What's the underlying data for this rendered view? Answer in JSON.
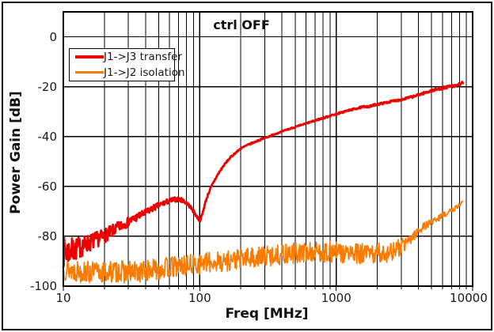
{
  "window": {
    "background": "#ffffff",
    "border_color": "#000000"
  },
  "chart_data": {
    "type": "line",
    "title": "ctrl OFF",
    "xlabel": "Freq [MHz]",
    "ylabel": "Power Gain [dB]",
    "x_scale": "log",
    "x_range": [
      10,
      10000
    ],
    "y_range": [
      -100,
      10
    ],
    "y_tick_step": 20,
    "x_ticks": [
      10,
      100,
      1000,
      10000
    ],
    "y_ticks": [
      0,
      -20,
      -40,
      -60,
      -80,
      -100
    ],
    "grid": true,
    "grid_color": "#000000",
    "legend_position": "top-left",
    "series": [
      {
        "name": "J1->J3 transfer",
        "color": "#ee0000",
        "line_width": 2.8,
        "seed": 7,
        "f_end": 8500,
        "keypoints": [
          [
            10,
            -86.5
          ],
          [
            12,
            -85.5
          ],
          [
            15,
            -83
          ],
          [
            18,
            -81
          ],
          [
            20,
            -79.8
          ],
          [
            23,
            -77.8
          ],
          [
            26,
            -76
          ],
          [
            30,
            -74.2
          ],
          [
            35,
            -72.2
          ],
          [
            40,
            -70.5
          ],
          [
            45,
            -68.9
          ],
          [
            50,
            -67.6
          ],
          [
            55,
            -66.6
          ],
          [
            60,
            -65.8
          ],
          [
            65,
            -65.3
          ],
          [
            70,
            -65.2
          ],
          [
            75,
            -65.6
          ],
          [
            80,
            -66.6
          ],
          [
            85,
            -68.1
          ],
          [
            90,
            -70
          ],
          [
            95,
            -72
          ],
          [
            100,
            -73.8
          ],
          [
            104,
            -71.5
          ],
          [
            108,
            -68
          ],
          [
            112,
            -65
          ],
          [
            116,
            -62.7
          ],
          [
            120,
            -60.8
          ],
          [
            130,
            -57
          ],
          [
            140,
            -54
          ],
          [
            150,
            -51.6
          ],
          [
            160,
            -49.7
          ],
          [
            170,
            -48.1
          ],
          [
            180,
            -46.9
          ],
          [
            190,
            -45.8
          ],
          [
            200,
            -44.8
          ],
          [
            220,
            -43.6
          ],
          [
            250,
            -42.3
          ],
          [
            280,
            -41.2
          ],
          [
            320,
            -40
          ],
          [
            360,
            -38.9
          ],
          [
            400,
            -38
          ],
          [
            450,
            -37
          ],
          [
            500,
            -36.2
          ],
          [
            600,
            -34.8
          ],
          [
            700,
            -33.6
          ],
          [
            800,
            -32.6
          ],
          [
            900,
            -31.7
          ],
          [
            1000,
            -31
          ],
          [
            1100,
            -30.3
          ],
          [
            1200,
            -29.7
          ],
          [
            1350,
            -29
          ],
          [
            1500,
            -28.4
          ],
          [
            1650,
            -27.9
          ],
          [
            1750,
            -28.1
          ],
          [
            1900,
            -27.3
          ],
          [
            2100,
            -26.9
          ],
          [
            2300,
            -26.4
          ],
          [
            2500,
            -26
          ],
          [
            2700,
            -25.6
          ],
          [
            3000,
            -25.2
          ],
          [
            3300,
            -24.6
          ],
          [
            3600,
            -24.1
          ],
          [
            4000,
            -23.3
          ],
          [
            4500,
            -22.4
          ],
          [
            5000,
            -21.6
          ],
          [
            5500,
            -21.1
          ],
          [
            6000,
            -20.6
          ],
          [
            6500,
            -20.2
          ],
          [
            7000,
            -19.8
          ],
          [
            7400,
            -19.9
          ],
          [
            7700,
            -19.3
          ],
          [
            8000,
            -19.1
          ],
          [
            8200,
            -18.7
          ],
          [
            8350,
            -18.5
          ],
          [
            8500,
            -18.9
          ]
        ],
        "noise_db": [
          [
            10,
            6
          ],
          [
            12,
            4.8
          ],
          [
            15,
            3.6
          ],
          [
            20,
            2.8
          ],
          [
            25,
            2.2
          ],
          [
            30,
            1.8
          ],
          [
            40,
            1.4
          ],
          [
            50,
            1.2
          ],
          [
            60,
            1.0
          ],
          [
            80,
            0.8
          ],
          [
            100,
            0.6
          ],
          [
            120,
            0.5
          ],
          [
            150,
            0.4
          ],
          [
            200,
            0.3
          ],
          [
            400,
            0.25
          ],
          [
            800,
            0.3
          ],
          [
            1500,
            0.4
          ],
          [
            3000,
            0.45
          ],
          [
            5000,
            0.5
          ],
          [
            8500,
            0.55
          ]
        ]
      },
      {
        "name": "J1->J2 isolation",
        "color": "#fb7a00",
        "line_width": 1.7,
        "seed": 13,
        "f_end": 8450,
        "keypoints": [
          [
            10,
            -93
          ],
          [
            15,
            -94.5
          ],
          [
            20,
            -94.5
          ],
          [
            25,
            -94
          ],
          [
            30,
            -94.5
          ],
          [
            40,
            -94
          ],
          [
            50,
            -93
          ],
          [
            60,
            -92.5
          ],
          [
            70,
            -92
          ],
          [
            85,
            -91.5
          ],
          [
            100,
            -91
          ],
          [
            120,
            -90.5
          ],
          [
            150,
            -90
          ],
          [
            200,
            -89
          ],
          [
            250,
            -88.5
          ],
          [
            300,
            -88
          ],
          [
            400,
            -87.2
          ],
          [
            500,
            -86.8
          ],
          [
            600,
            -86.5
          ],
          [
            700,
            -86.3
          ],
          [
            800,
            -86.2
          ],
          [
            1000,
            -86.4
          ],
          [
            1200,
            -86.8
          ],
          [
            1500,
            -87.2
          ],
          [
            1800,
            -87.3
          ],
          [
            2100,
            -87
          ],
          [
            2400,
            -86.3
          ],
          [
            2700,
            -85.6
          ],
          [
            3000,
            -84.3
          ],
          [
            3200,
            -83
          ],
          [
            3400,
            -81.8
          ],
          [
            3600,
            -80.5
          ],
          [
            3800,
            -79
          ],
          [
            4000,
            -77.8
          ],
          [
            4300,
            -76.5
          ],
          [
            4600,
            -75.4
          ],
          [
            5000,
            -74.2
          ],
          [
            5400,
            -73.2
          ],
          [
            5800,
            -72.2
          ],
          [
            6200,
            -71.3
          ],
          [
            6600,
            -70.5
          ],
          [
            7000,
            -69.7
          ],
          [
            7400,
            -68.9
          ],
          [
            7800,
            -67.9
          ],
          [
            8100,
            -67
          ],
          [
            8300,
            -66.4
          ],
          [
            8450,
            -65.8
          ]
        ],
        "noise_db": [
          [
            10,
            4.5
          ],
          [
            30,
            4.5
          ],
          [
            100,
            4.2
          ],
          [
            300,
            4.2
          ],
          [
            1000,
            4.3
          ],
          [
            2000,
            4.4
          ],
          [
            2800,
            3.8
          ],
          [
            3200,
            2.8
          ],
          [
            3600,
            2.2
          ],
          [
            4000,
            1.8
          ],
          [
            5000,
            1.4
          ],
          [
            6000,
            1.2
          ],
          [
            7000,
            1.0
          ],
          [
            8450,
            0.9
          ]
        ]
      }
    ]
  }
}
